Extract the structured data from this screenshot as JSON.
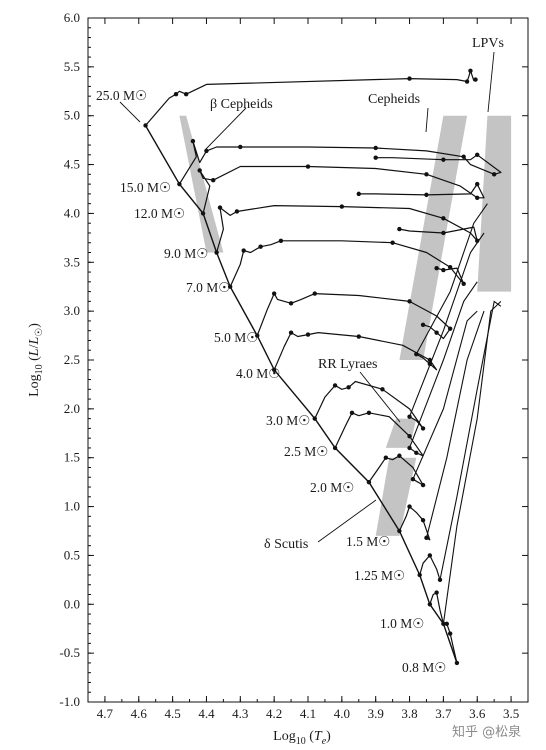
{
  "chart_data": {
    "type": "line",
    "xlabel": "Log10 (Te)",
    "ylabel": "Log10 (L/L☉)",
    "xlim": [
      4.75,
      3.45
    ],
    "ylim": [
      -1.0,
      6.0
    ],
    "x_reversed": true,
    "grid": false,
    "x_ticks": [
      "4.7",
      "4.6",
      "4.5",
      "4.4",
      "4.3",
      "4.2",
      "4.1",
      "4.0",
      "3.9",
      "3.8",
      "3.7",
      "3.6",
      "3.5"
    ],
    "y_ticks": [
      "-1.0",
      "-0.5",
      "0.0",
      "0.5",
      "1.0",
      "1.5",
      "2.0",
      "2.5",
      "3.0",
      "3.5",
      "4.0",
      "4.5",
      "5.0",
      "5.5",
      "6.0"
    ],
    "zams": [
      [
        4.58,
        4.9
      ],
      [
        4.48,
        4.3
      ],
      [
        4.41,
        4.0
      ],
      [
        4.37,
        3.6
      ],
      [
        4.33,
        3.25
      ],
      [
        4.25,
        2.75
      ],
      [
        4.2,
        2.4
      ],
      [
        4.08,
        1.9
      ],
      [
        4.02,
        1.6
      ],
      [
        3.92,
        1.25
      ],
      [
        3.83,
        0.75
      ],
      [
        3.77,
        0.3
      ],
      [
        3.74,
        0.0
      ],
      [
        3.7,
        -0.2
      ],
      [
        3.66,
        -0.6
      ]
    ],
    "tracks": [
      {
        "mass": "25.0 M☉",
        "points": [
          [
            4.58,
            4.9
          ],
          [
            4.51,
            5.18
          ],
          [
            4.49,
            5.22
          ],
          [
            4.48,
            5.25
          ],
          [
            4.46,
            5.22
          ],
          [
            4.4,
            5.32
          ],
          [
            3.8,
            5.38
          ],
          [
            3.66,
            5.37
          ],
          [
            3.63,
            5.35
          ],
          [
            3.625,
            5.4
          ],
          [
            3.62,
            5.46
          ],
          [
            3.61,
            5.36
          ],
          [
            3.605,
            5.37
          ]
        ]
      },
      {
        "mass": "15.0 M☉",
        "points": [
          [
            4.48,
            4.3
          ],
          [
            4.43,
            4.58
          ],
          [
            4.44,
            4.74
          ],
          [
            4.42,
            4.52
          ],
          [
            4.4,
            4.64
          ],
          [
            4.37,
            4.68
          ],
          [
            4.3,
            4.68
          ],
          [
            4.1,
            4.68
          ],
          [
            3.9,
            4.67
          ],
          [
            3.75,
            4.64
          ],
          [
            3.64,
            4.58
          ],
          [
            3.62,
            4.5
          ],
          [
            3.55,
            4.4
          ],
          [
            3.53,
            4.42
          ],
          [
            3.6,
            4.6
          ],
          [
            3.62,
            4.55
          ],
          [
            3.7,
            4.55
          ],
          [
            3.85,
            4.57
          ],
          [
            3.9,
            4.57
          ]
        ]
      },
      {
        "mass": "12.0 M☉",
        "points": [
          [
            4.41,
            4.0
          ],
          [
            4.39,
            4.28
          ],
          [
            4.42,
            4.44
          ],
          [
            4.41,
            4.36
          ],
          [
            4.38,
            4.34
          ],
          [
            4.3,
            4.48
          ],
          [
            4.1,
            4.48
          ],
          [
            3.9,
            4.46
          ],
          [
            3.75,
            4.4
          ],
          [
            3.65,
            4.28
          ],
          [
            3.6,
            4.16
          ],
          [
            3.58,
            4.16
          ],
          [
            3.6,
            4.3
          ],
          [
            3.62,
            4.2
          ],
          [
            3.75,
            4.19
          ],
          [
            3.9,
            4.2
          ],
          [
            3.95,
            4.2
          ]
        ]
      },
      {
        "mass": "9.0 M☉",
        "points": [
          [
            4.37,
            3.6
          ],
          [
            4.35,
            3.84
          ],
          [
            4.36,
            4.06
          ],
          [
            4.33,
            3.98
          ],
          [
            4.31,
            4.02
          ],
          [
            4.2,
            4.08
          ],
          [
            4.0,
            4.07
          ],
          [
            3.8,
            4.05
          ],
          [
            3.7,
            3.95
          ],
          [
            3.62,
            3.8
          ],
          [
            3.6,
            3.72
          ],
          [
            3.61,
            3.86
          ],
          [
            3.7,
            3.8
          ],
          [
            3.8,
            3.82
          ],
          [
            3.83,
            3.84
          ]
        ]
      },
      {
        "mass": "7.0 M☉",
        "points": [
          [
            4.33,
            3.25
          ],
          [
            4.3,
            3.48
          ],
          [
            4.29,
            3.62
          ],
          [
            4.27,
            3.6
          ],
          [
            4.24,
            3.66
          ],
          [
            4.21,
            3.68
          ],
          [
            4.18,
            3.72
          ],
          [
            4.0,
            3.72
          ],
          [
            3.85,
            3.7
          ],
          [
            3.75,
            3.6
          ],
          [
            3.68,
            3.45
          ],
          [
            3.65,
            3.32
          ],
          [
            3.64,
            3.28
          ],
          [
            3.66,
            3.44
          ],
          [
            3.7,
            3.42
          ],
          [
            3.72,
            3.44
          ]
        ]
      },
      {
        "mass": "5.0 M☉",
        "points": [
          [
            4.25,
            2.75
          ],
          [
            4.22,
            3.02
          ],
          [
            4.2,
            3.18
          ],
          [
            4.19,
            3.12
          ],
          [
            4.15,
            3.08
          ],
          [
            4.12,
            3.12
          ],
          [
            4.08,
            3.18
          ],
          [
            3.95,
            3.16
          ],
          [
            3.8,
            3.1
          ],
          [
            3.72,
            2.95
          ],
          [
            3.68,
            2.82
          ],
          [
            3.7,
            2.72
          ],
          [
            3.72,
            2.78
          ],
          [
            3.74,
            2.84
          ],
          [
            3.76,
            2.86
          ]
        ]
      },
      {
        "mass": "4.0 M☉",
        "points": [
          [
            4.2,
            2.4
          ],
          [
            4.17,
            2.64
          ],
          [
            4.15,
            2.78
          ],
          [
            4.13,
            2.74
          ],
          [
            4.1,
            2.76
          ],
          [
            4.07,
            2.78
          ],
          [
            3.95,
            2.74
          ],
          [
            3.82,
            2.65
          ],
          [
            3.74,
            2.5
          ],
          [
            3.72,
            2.4
          ],
          [
            3.74,
            2.46
          ],
          [
            3.76,
            2.52
          ],
          [
            3.78,
            2.56
          ]
        ]
      },
      {
        "mass": "3.0 M☉",
        "points": [
          [
            4.08,
            1.9
          ],
          [
            4.05,
            2.12
          ],
          [
            4.02,
            2.24
          ],
          [
            4.0,
            2.2
          ],
          [
            3.98,
            2.22
          ],
          [
            3.96,
            2.28
          ],
          [
            3.88,
            2.2
          ],
          [
            3.8,
            2.0
          ],
          [
            3.76,
            1.8
          ],
          [
            3.78,
            1.88
          ],
          [
            3.8,
            1.92
          ]
        ]
      },
      {
        "mass": "2.5 M☉",
        "points": [
          [
            4.02,
            1.6
          ],
          [
            3.99,
            1.82
          ],
          [
            3.97,
            1.96
          ],
          [
            3.95,
            1.93
          ],
          [
            3.92,
            1.96
          ],
          [
            3.86,
            1.92
          ],
          [
            3.8,
            1.72
          ],
          [
            3.76,
            1.52
          ],
          [
            3.78,
            1.55
          ],
          [
            3.8,
            1.6
          ]
        ]
      },
      {
        "mass": "2.0 M☉",
        "points": [
          [
            3.92,
            1.25
          ],
          [
            3.89,
            1.4
          ],
          [
            3.87,
            1.5
          ],
          [
            3.85,
            1.48
          ],
          [
            3.83,
            1.52
          ],
          [
            3.79,
            1.4
          ],
          [
            3.76,
            1.22
          ],
          [
            3.78,
            1.26
          ],
          [
            3.79,
            1.28
          ]
        ]
      },
      {
        "mass": "1.5 M☉",
        "points": [
          [
            3.83,
            0.75
          ],
          [
            3.81,
            0.9
          ],
          [
            3.8,
            1.0
          ],
          [
            3.78,
            0.94
          ],
          [
            3.76,
            0.86
          ],
          [
            3.74,
            0.66
          ],
          [
            3.75,
            0.68
          ]
        ]
      },
      {
        "mass": "1.25 M☉",
        "points": [
          [
            3.77,
            0.3
          ],
          [
            3.76,
            0.42
          ],
          [
            3.74,
            0.5
          ],
          [
            3.72,
            0.36
          ],
          [
            3.71,
            0.25
          ]
        ]
      },
      {
        "mass": "1.0 M☉",
        "points": [
          [
            3.74,
            0.0
          ],
          [
            3.73,
            0.1
          ],
          [
            3.72,
            0.12
          ],
          [
            3.71,
            -0.06
          ],
          [
            3.7,
            -0.2
          ]
        ]
      },
      {
        "mass": "0.8 M☉",
        "points": [
          [
            3.66,
            -0.6
          ],
          [
            3.67,
            -0.45
          ],
          [
            3.68,
            -0.3
          ],
          [
            3.69,
            -0.2
          ]
        ]
      }
    ],
    "rgb_tracks": [
      [
        [
          3.7,
          -0.2
        ],
        [
          3.66,
          0.8
        ],
        [
          3.6,
          1.9
        ],
        [
          3.56,
          3.0
        ],
        [
          3.53,
          3.1
        ]
      ],
      [
        [
          3.71,
          0.25
        ],
        [
          3.66,
          1.1
        ],
        [
          3.6,
          2.2
        ],
        [
          3.55,
          3.1
        ],
        [
          3.53,
          3.05
        ]
      ],
      [
        [
          3.75,
          0.68
        ],
        [
          3.69,
          1.5
        ],
        [
          3.63,
          2.5
        ],
        [
          3.58,
          3.0
        ]
      ],
      [
        [
          3.79,
          1.28
        ],
        [
          3.7,
          2.0
        ],
        [
          3.63,
          2.9
        ],
        [
          3.6,
          3.0
        ]
      ],
      [
        [
          3.8,
          1.6
        ],
        [
          3.7,
          2.5
        ],
        [
          3.64,
          3.1
        ],
        [
          3.6,
          3.3
        ]
      ],
      [
        [
          3.8,
          1.92
        ],
        [
          3.7,
          2.8
        ],
        [
          3.62,
          3.6
        ],
        [
          3.58,
          3.8
        ]
      ],
      [
        [
          3.78,
          2.56
        ],
        [
          3.68,
          3.2
        ],
        [
          3.61,
          3.9
        ],
        [
          3.57,
          4.1
        ]
      ]
    ],
    "regions": [
      {
        "name": "β Cepheids",
        "polygon": [
          [
            4.48,
            5.0
          ],
          [
            4.46,
            5.0
          ],
          [
            4.35,
            3.6
          ],
          [
            4.4,
            3.6
          ]
        ]
      },
      {
        "name": "Cepheids",
        "polygon": [
          [
            3.83,
            2.5
          ],
          [
            3.7,
            5.0
          ],
          [
            3.63,
            5.0
          ],
          [
            3.76,
            2.5
          ]
        ]
      },
      {
        "name": "LPVs",
        "polygon": [
          [
            3.6,
            3.2
          ],
          [
            3.5,
            3.2
          ],
          [
            3.5,
            5.0
          ],
          [
            3.57,
            5.0
          ]
        ]
      },
      {
        "name": "RR Lyraes",
        "polygon": [
          [
            3.87,
            1.6
          ],
          [
            3.8,
            1.6
          ],
          [
            3.78,
            1.9
          ],
          [
            3.84,
            1.9
          ]
        ]
      },
      {
        "name": "δ Scutis",
        "polygon": [
          [
            3.9,
            0.7
          ],
          [
            3.83,
            0.7
          ],
          [
            3.78,
            1.5
          ],
          [
            3.86,
            1.5
          ]
        ]
      }
    ],
    "annotations": [
      {
        "text": "25.0 M☉"
      },
      {
        "text": "β Cepheids"
      },
      {
        "text": "15.0 M☉"
      },
      {
        "text": "12.0 M☉"
      },
      {
        "text": "9.0 M☉"
      },
      {
        "text": "7.0 M☉"
      },
      {
        "text": "5.0 M☉"
      },
      {
        "text": "4.0 M☉"
      },
      {
        "text": "3.0 M☉"
      },
      {
        "text": "2.5 M☉"
      },
      {
        "text": "2.0 M☉"
      },
      {
        "text": "1.5 M☉"
      },
      {
        "text": "1.25 M☉"
      },
      {
        "text": "1.0 M☉"
      },
      {
        "text": "0.8 M☉"
      },
      {
        "text": "Cepheids"
      },
      {
        "text": "LPVs"
      },
      {
        "text": "RR Lyraes"
      },
      {
        "text": "δ Scutis"
      }
    ]
  },
  "watermark": "知乎 @松泉"
}
